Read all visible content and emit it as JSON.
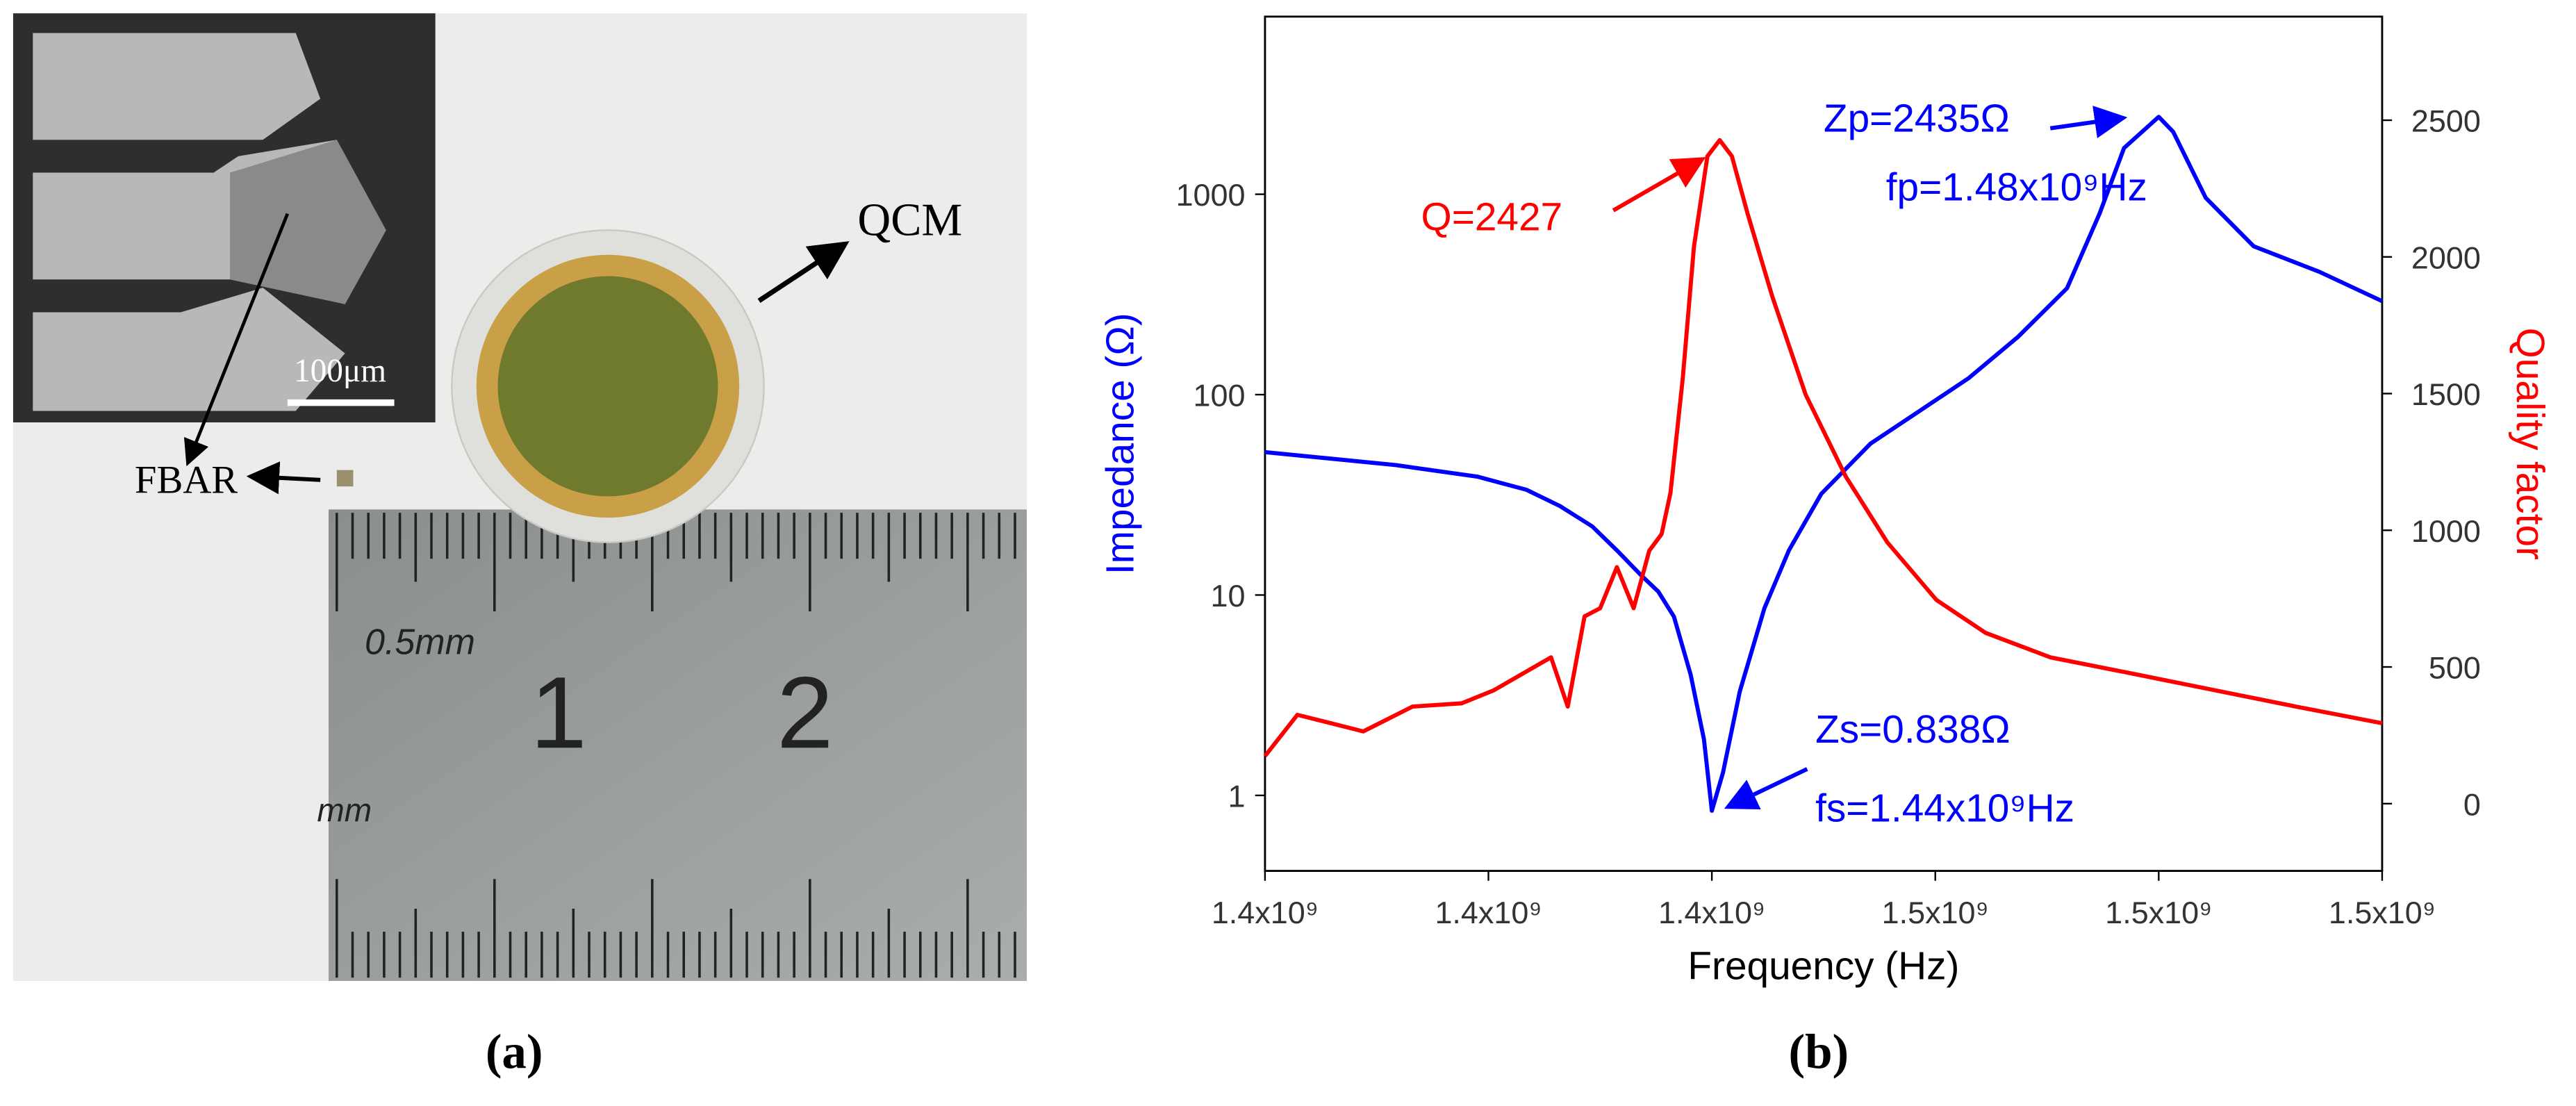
{
  "photo": {
    "scale_bar": "100μm",
    "fbar_label": "FBAR",
    "qcm_label": "QCM",
    "ruler_labels": [
      "0.5mm",
      "1",
      "2",
      "mm"
    ]
  },
  "panel_labels": [
    "(a)",
    "(b)"
  ],
  "chart_data": {
    "type": "line",
    "xlabel": "Frequency (Hz)",
    "ylabel": "Impedance (Ω)",
    "y2label": "Quality factor",
    "xlim": [
      1400000000,
      1500000000
    ],
    "xticks": [
      {
        "value": 1400000000,
        "label": "1.4x10⁹"
      },
      {
        "value": 1420000000,
        "label": "1.4x10⁹"
      },
      {
        "value": 1440000000,
        "label": "1.4x10⁹"
      },
      {
        "value": 1460000000,
        "label": "1.5x10⁹"
      },
      {
        "value": 1480000000,
        "label": "1.5x10⁹"
      },
      {
        "value": 1500000000,
        "label": "1.5x10⁹"
      }
    ],
    "ylim": [
      0.42,
      7700
    ],
    "yticks": [
      1,
      10,
      100,
      1000
    ],
    "ylog": true,
    "y2lim": [
      -246,
      2879
    ],
    "y2ticks": [
      0,
      500,
      1000,
      1500,
      2000,
      2500
    ],
    "grid": false,
    "series": [
      {
        "name": "Impedance",
        "color": "#0000ff",
        "x": [
          1400000000,
          1411700000,
          1419000000,
          1423400000,
          1426400000,
          1429300000,
          1431500000,
          1433700000,
          1435200000,
          1436600000,
          1438100000,
          1439300000,
          1440000000,
          1441000000,
          1442500000,
          1444700000,
          1446900000,
          1449800000,
          1454200000,
          1458600000,
          1463000000,
          1467400000,
          1471800000,
          1474700000,
          1476900000,
          1480000000,
          1481300000,
          1484200000,
          1488500000,
          1494400000,
          1500000000
        ],
        "values": [
          51.6,
          44.5,
          39,
          33.5,
          27.8,
          22,
          16.7,
          12.5,
          10.4,
          7.8,
          4.0,
          1.9,
          0.838,
          1.3,
          3.3,
          8.6,
          16.7,
          32,
          57,
          83,
          121,
          194,
          340,
          800,
          1700,
          2435,
          2050,
          960,
          550,
          410,
          293
        ]
      },
      {
        "name": "Quality factor",
        "color": "#ff0000",
        "axis": "y2",
        "x": [
          1400000000,
          1402900000,
          1405900000,
          1408800000,
          1413200000,
          1417600000,
          1420500000,
          1425600000,
          1427100000,
          1428600000,
          1430000000,
          1431500000,
          1433000000,
          1434400000,
          1435500000,
          1436300000,
          1437400000,
          1438400000,
          1439600000,
          1440700000,
          1441800000,
          1443200000,
          1445400000,
          1448400000,
          1452000000,
          1455700000,
          1460100000,
          1464500000,
          1470300000,
          1477700000,
          1485000000,
          1492300000,
          1500000000
        ],
        "values": [
          174,
          325,
          294,
          264,
          355,
          367,
          415,
          535,
          355,
          685,
          715,
          865,
          715,
          925,
          986,
          1136,
          1556,
          2037,
          2368,
          2427,
          2368,
          2157,
          1857,
          1496,
          1196,
          956,
          745,
          625,
          535,
          475,
          415,
          355,
          294
        ]
      }
    ],
    "annotations": [
      "Zp=2435Ω",
      "fp=1.48x10⁹Hz",
      "Q=2427",
      "Zs=0.838Ω",
      "fs=1.44x10⁹Hz"
    ]
  }
}
